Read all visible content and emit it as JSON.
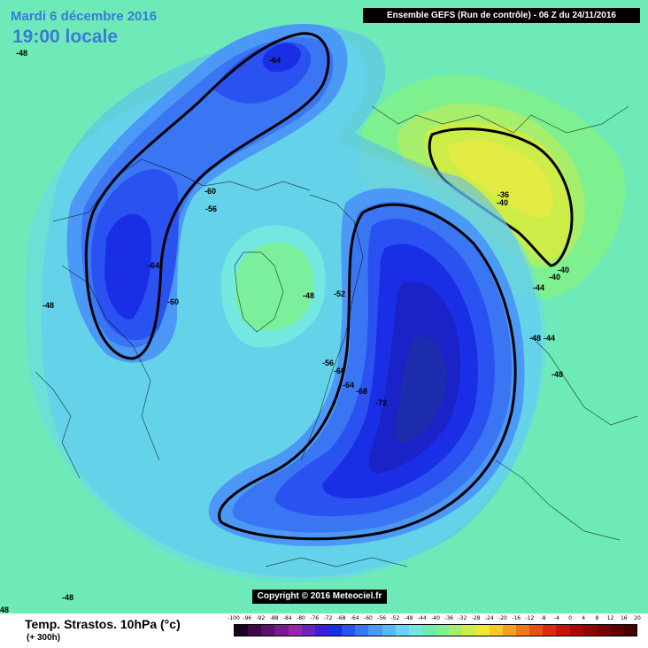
{
  "header": {
    "date": "Mardi 6 décembre 2016",
    "time": "19:00 locale",
    "run": "Ensemble GEFS  (Run de contrôle)  -  06 Z du 24/11/2016"
  },
  "copyright": "Copyright © 2016 Meteociel.fr",
  "footer": {
    "title": "Temp. Strastos. 10hPa (°c)",
    "subtitle": "(+ 300h)"
  },
  "legend": {
    "values": [
      "-100",
      "-96",
      "-92",
      "-88",
      "-84",
      "-80",
      "-76",
      "-72",
      "-68",
      "-64",
      "-60",
      "-56",
      "-52",
      "-48",
      "-44",
      "-40",
      "-36",
      "-32",
      "-28",
      "-24",
      "-20",
      "-16",
      "-12",
      "-8",
      "-4",
      "0",
      "4",
      "8",
      "12",
      "16",
      "20"
    ],
    "colors": [
      "#1a0020",
      "#3c0848",
      "#5c106a",
      "#7a1a8c",
      "#9826aa",
      "#6a22c0",
      "#3a1ed8",
      "#1a2ee6",
      "#2a52f0",
      "#3a76f4",
      "#4c98f6",
      "#5ab8f8",
      "#68d4f8",
      "#72e8e0",
      "#6aecb0",
      "#7ef090",
      "#a6ee6c",
      "#ccec48",
      "#eee832",
      "#f6c828",
      "#f6a020",
      "#f07818",
      "#ea5010",
      "#e0280a",
      "#c81206",
      "#ae0804",
      "#920402",
      "#780202",
      "#5e0000",
      "#440000"
    ]
  },
  "contour_labels": [
    {
      "text": "-48",
      "pos": "top-left edge"
    },
    {
      "text": "-64",
      "pos": "north pacific low"
    },
    {
      "text": "-60",
      "pos": "alaska"
    },
    {
      "text": "-56",
      "pos": "arctic canada"
    },
    {
      "text": "-64",
      "pos": "north america low"
    },
    {
      "text": "-60",
      "pos": "north america"
    },
    {
      "text": "-48",
      "pos": "left edge"
    },
    {
      "text": "-48",
      "pos": "pole"
    },
    {
      "text": "-52",
      "pos": "pole east"
    },
    {
      "text": "-56",
      "pos": "siberia ring"
    },
    {
      "text": "-60",
      "pos": "siberia ring"
    },
    {
      "text": "-64",
      "pos": "siberia ring"
    },
    {
      "text": "-68",
      "pos": "siberia ring"
    },
    {
      "text": "-72",
      "pos": "siberia core"
    },
    {
      "text": "-36",
      "pos": "atlantic high"
    },
    {
      "text": "-40",
      "pos": "atlantic high"
    },
    {
      "text": "-40",
      "pos": "atlantic high tail"
    },
    {
      "text": "-40",
      "pos": "atlantic high tail"
    },
    {
      "text": "-44",
      "pos": "europe"
    },
    {
      "text": "-48",
      "pos": "europe"
    },
    {
      "text": "-44",
      "pos": "europe"
    },
    {
      "text": "-48",
      "pos": "right side"
    },
    {
      "text": "-48",
      "pos": "bottom left"
    },
    {
      "text": "48",
      "pos": "bottom-left corner"
    }
  ]
}
